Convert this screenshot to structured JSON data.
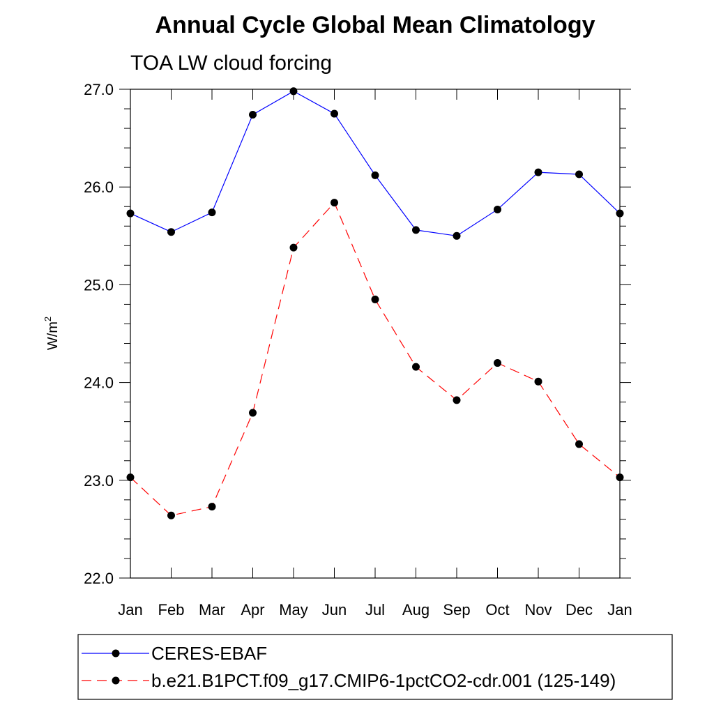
{
  "chart_data": {
    "type": "line",
    "title": "Annual Cycle Global Mean Climatology",
    "subtitle": "TOA LW cloud forcing",
    "xlabel": "",
    "ylabel": "W/m",
    "ylabel_superscript": "2",
    "categories": [
      "Jan",
      "Feb",
      "Mar",
      "Apr",
      "May",
      "Jun",
      "Jul",
      "Aug",
      "Sep",
      "Oct",
      "Nov",
      "Dec",
      "Jan"
    ],
    "ylim": [
      22.0,
      27.0
    ],
    "yticks": [
      "22.0",
      "23.0",
      "24.0",
      "25.0",
      "26.0",
      "27.0"
    ],
    "series": [
      {
        "name": "CERES-EBAF",
        "color": "#0000ff",
        "dashed": false,
        "values": [
          25.73,
          25.54,
          25.74,
          26.74,
          26.98,
          26.75,
          26.12,
          25.56,
          25.5,
          25.77,
          26.15,
          26.13,
          25.73
        ]
      },
      {
        "name": "b.e21.B1PCT.f09_g17.CMIP6-1pctCO2-cdr.001 (125-149)",
        "color": "#ff0000",
        "dashed": true,
        "values": [
          23.03,
          22.64,
          22.73,
          23.69,
          25.38,
          25.84,
          24.85,
          24.16,
          23.82,
          24.2,
          24.01,
          23.37,
          23.03
        ]
      }
    ],
    "legend_position": "bottom"
  }
}
